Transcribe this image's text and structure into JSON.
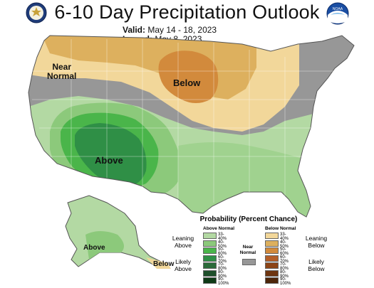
{
  "header": {
    "title": "6-10 Day Precipitation Outlook",
    "valid_label": "Valid:",
    "valid_value": "May 14 - 18, 2023",
    "issued_label": "Issued:",
    "issued_value": "May 8, 2023",
    "left_logo_icon": "us-department-of-commerce-seal-icon",
    "right_logo_icon": "noaa-logo-icon",
    "noaa_logo_text": "NOAA"
  },
  "map_labels": {
    "near_normal": "Near\nNormal",
    "below": "Below",
    "above": "Above",
    "alaska_above": "Above",
    "alaska_below": "Below"
  },
  "legend": {
    "title": "Probability (Percent Chance)",
    "above_normal_header": "Above Normal",
    "below_normal_header": "Below Normal",
    "near_normal_label": "Near\nNormal",
    "leaning_above": "Leaning\nAbove",
    "likely_above": "Likely\nAbove",
    "leaning_below": "Leaning\nBelow",
    "likely_below": "Likely\nBelow",
    "above_ranges": [
      "33-40%",
      "40-50%",
      "50-60%",
      "60-70%",
      "70-80%",
      "80-90%",
      "90-100%"
    ],
    "below_ranges": [
      "33-40%",
      "40-50%",
      "50-60%",
      "60-70%",
      "70-80%",
      "80-90%",
      "90-100%"
    ],
    "above_colors": [
      "#b3d9a3",
      "#8cc97b",
      "#4ab54a",
      "#2f8f46",
      "#2b6b3a",
      "#1e4f2a",
      "#0f3a16"
    ],
    "below_colors": [
      "#f2d79a",
      "#ddb05e",
      "#d28a3c",
      "#b45e28",
      "#8c4416",
      "#6e3510",
      "#4d2509"
    ],
    "near_normal_color": "#979797"
  }
}
